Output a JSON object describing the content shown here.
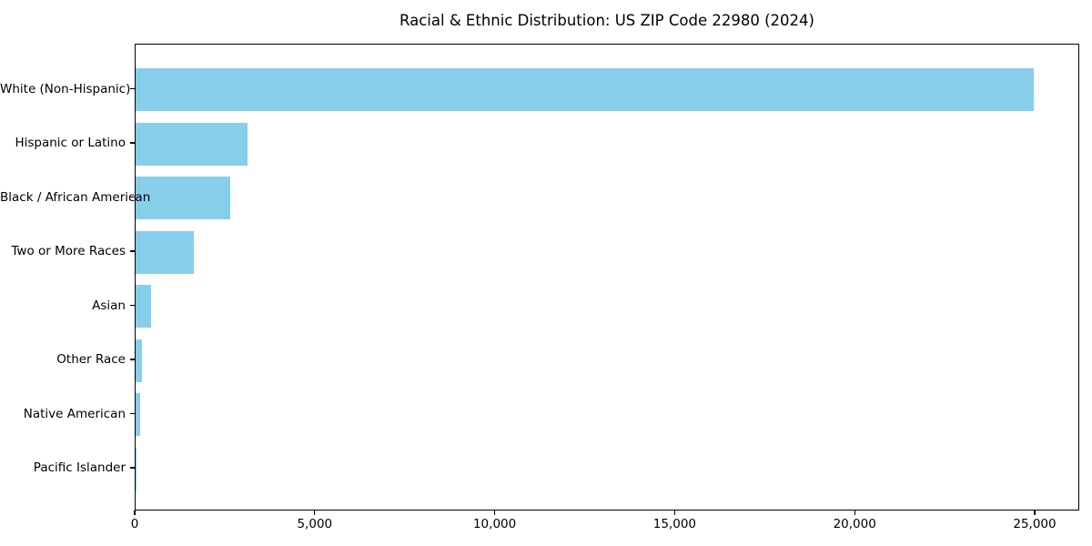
{
  "chart_data": {
    "type": "bar",
    "orientation": "horizontal",
    "title": "Racial & Ethnic Distribution: US ZIP Code 22980 (2024)",
    "categories": [
      "White (Non-Hispanic)",
      "Hispanic or Latino",
      "Black / African American",
      "Two or More Races",
      "Asian",
      "Other Race",
      "Native American",
      "Pacific Islander"
    ],
    "values": [
      24950,
      3120,
      2620,
      1610,
      440,
      165,
      115,
      10
    ],
    "xlabel": "",
    "ylabel": "",
    "xlim": [
      0,
      26250
    ],
    "x_ticks": [
      0,
      5000,
      10000,
      15000,
      20000,
      25000
    ],
    "x_tick_labels": [
      "0",
      "5,000",
      "10,000",
      "15,000",
      "20,000",
      "25,000"
    ],
    "bar_color": "#87CEEB",
    "axis_color": "#000000",
    "text_color": "#000000",
    "background_color": "#ffffff",
    "grid": false,
    "legend_position": "none"
  }
}
